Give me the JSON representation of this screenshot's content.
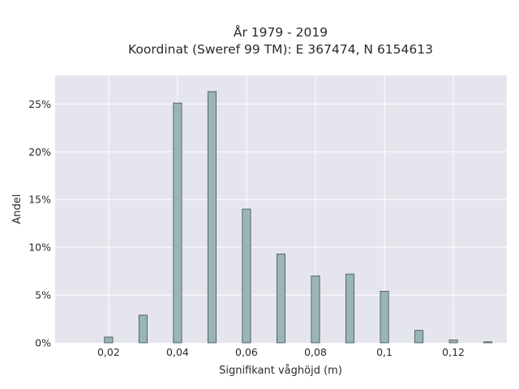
{
  "chart_data": {
    "type": "bar",
    "title": "År 1979 - 2019",
    "subtitle": "Koordinat (Sweref 99 TM): E 367474, N 6154613",
    "xlabel": "Signifikant våghöjd (m)",
    "ylabel": "Andel",
    "xlim": [
      0.0045,
      0.1355
    ],
    "ylim": [
      0,
      0.28
    ],
    "x_ticks": [
      0.02,
      0.04,
      0.06,
      0.08,
      0.1,
      0.12
    ],
    "x_tick_labels": [
      "0,02",
      "0,04",
      "0,06",
      "0,08",
      "0,1",
      "0,12"
    ],
    "y_ticks": [
      0,
      0.05,
      0.1,
      0.15,
      0.2,
      0.25
    ],
    "y_tick_labels": [
      "0%",
      "5%",
      "10%",
      "15%",
      "20%",
      "25%"
    ],
    "bar_width": 0.0024,
    "x": [
      0.02,
      0.03,
      0.04,
      0.05,
      0.06,
      0.07,
      0.08,
      0.09,
      0.1,
      0.11,
      0.12,
      0.13
    ],
    "values": [
      0.006,
      0.029,
      0.251,
      0.263,
      0.14,
      0.093,
      0.07,
      0.072,
      0.054,
      0.013,
      0.003,
      0.001
    ],
    "grid": true,
    "colors": {
      "plot_bg": "#e5e5ee",
      "grid": "#ffffff",
      "bar_fill": "#9ab5b5",
      "bar_stroke": "#3f4f4f"
    }
  }
}
